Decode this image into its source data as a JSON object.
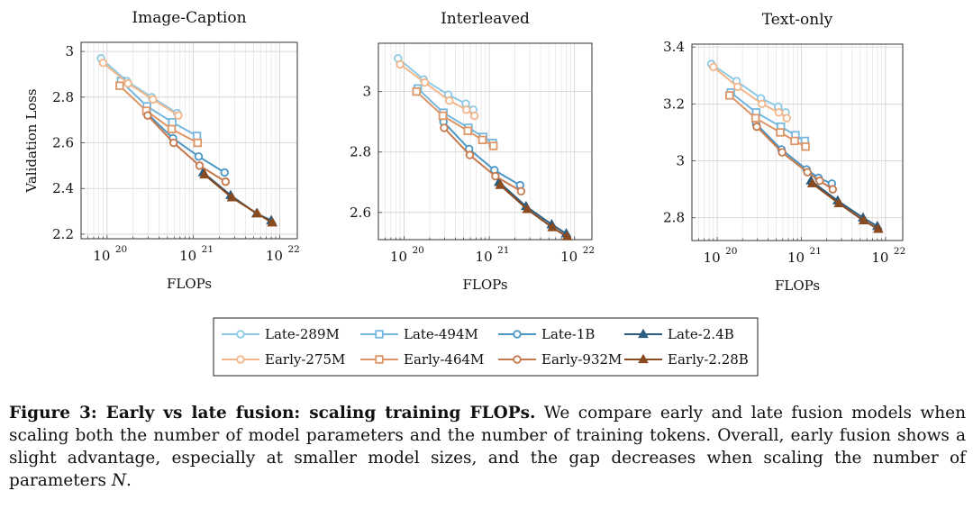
{
  "colors": {
    "late": [
      "#8ec9e6",
      "#74b7df",
      "#4d97c7",
      "#2a5d80"
    ],
    "early": [
      "#f2b68a",
      "#dd9566",
      "#c57a4d",
      "#8a4a1f"
    ]
  },
  "chart_data": [
    {
      "type": "line",
      "title": "Image-Caption",
      "xlabel": "FLOPs",
      "ylabel": "Validation Loss",
      "xscale": "log",
      "xlim": [
        5e+19,
        1.6e+22
      ],
      "ylim": [
        2.18,
        3.04
      ],
      "xticks": [
        {
          "v": 1e+20,
          "base": "10",
          "exp": "20"
        },
        {
          "v": 1e+21,
          "base": "10",
          "exp": "21"
        },
        {
          "v": 1e+22,
          "base": "10",
          "exp": "22"
        }
      ],
      "yticks": [
        {
          "v": 2.2,
          "label": "2.2"
        },
        {
          "v": 2.4,
          "label": "2.4"
        },
        {
          "v": 2.6,
          "label": "2.6"
        },
        {
          "v": 2.8,
          "label": "2.8"
        },
        {
          "v": 3.0,
          "label": "3"
        }
      ],
      "grid": true,
      "series": [
        {
          "name": "Late-289M",
          "group": "late",
          "marker": "circle",
          "points": [
            [
              8.5e+19,
              2.97
            ],
            [
              1.7e+20,
              2.87
            ],
            [
              3.3e+20,
              2.8
            ],
            [
              6.5e+20,
              2.73
            ]
          ]
        },
        {
          "name": "Late-494M",
          "group": "late",
          "marker": "square",
          "points": [
            [
              1.45e+20,
              2.87
            ],
            [
              2.9e+20,
              2.76
            ],
            [
              5.7e+20,
              2.69
            ],
            [
              1.1e+21,
              2.63
            ]
          ]
        },
        {
          "name": "Late-1B",
          "group": "late",
          "marker": "circle",
          "points": [
            [
              2.9e+20,
              2.73
            ],
            [
              5.8e+20,
              2.62
            ],
            [
              1.15e+21,
              2.54
            ],
            [
              2.3e+21,
              2.47
            ]
          ]
        },
        {
          "name": "Late-2.4B",
          "group": "late",
          "marker": "triangle",
          "points": [
            [
              1.3e+21,
              2.47
            ],
            [
              2.7e+21,
              2.37
            ],
            [
              5.4e+21,
              2.29
            ],
            [
              8e+21,
              2.26
            ]
          ]
        },
        {
          "name": "Early-275M",
          "group": "early",
          "marker": "circle",
          "points": [
            [
              9e+19,
              2.95
            ],
            [
              1.75e+20,
              2.86
            ],
            [
              3.4e+20,
              2.79
            ],
            [
              6.7e+20,
              2.72
            ]
          ]
        },
        {
          "name": "Early-464M",
          "group": "early",
          "marker": "square",
          "points": [
            [
              1.4e+20,
              2.85
            ],
            [
              2.85e+20,
              2.74
            ],
            [
              5.6e+20,
              2.66
            ],
            [
              1.12e+21,
              2.6
            ]
          ]
        },
        {
          "name": "Early-932M",
          "group": "early",
          "marker": "circle",
          "points": [
            [
              2.95e+20,
              2.72
            ],
            [
              5.9e+20,
              2.6
            ],
            [
              1.18e+21,
              2.5
            ],
            [
              2.36e+21,
              2.43
            ]
          ]
        },
        {
          "name": "Early-2.28B",
          "group": "early",
          "marker": "triangle",
          "points": [
            [
              1.35e+21,
              2.46
            ],
            [
              2.8e+21,
              2.36
            ],
            [
              5.5e+21,
              2.29
            ],
            [
              8.2e+21,
              2.25
            ]
          ]
        }
      ]
    },
    {
      "type": "line",
      "title": "Interleaved",
      "xlabel": "FLOPs",
      "ylabel": "",
      "xscale": "log",
      "xlim": [
        5e+19,
        1.6e+22
      ],
      "ylim": [
        2.51,
        3.16
      ],
      "xticks": [
        {
          "v": 1e+20,
          "base": "10",
          "exp": "20"
        },
        {
          "v": 1e+21,
          "base": "10",
          "exp": "21"
        },
        {
          "v": 1e+22,
          "base": "10",
          "exp": "22"
        }
      ],
      "yticks": [
        {
          "v": 2.6,
          "label": "2.6"
        },
        {
          "v": 2.8,
          "label": "2.8"
        },
        {
          "v": 3.0,
          "label": "3"
        }
      ],
      "grid": true,
      "series": [
        {
          "name": "Late-289M",
          "group": "late",
          "marker": "circle",
          "points": [
            [
              8.5e+19,
              3.11
            ],
            [
              1.7e+20,
              3.04
            ],
            [
              3.3e+20,
              2.99
            ],
            [
              5.3e+20,
              2.96
            ],
            [
              6.5e+20,
              2.94
            ]
          ]
        },
        {
          "name": "Late-494M",
          "group": "late",
          "marker": "square",
          "points": [
            [
              1.45e+20,
              3.01
            ],
            [
              2.9e+20,
              2.93
            ],
            [
              5.7e+20,
              2.88
            ],
            [
              8.5e+20,
              2.85
            ],
            [
              1.1e+21,
              2.83
            ]
          ]
        },
        {
          "name": "Late-1B",
          "group": "late",
          "marker": "circle",
          "points": [
            [
              2.9e+20,
              2.9
            ],
            [
              5.8e+20,
              2.81
            ],
            [
              1.15e+21,
              2.74
            ],
            [
              2.3e+21,
              2.69
            ]
          ]
        },
        {
          "name": "Late-2.4B",
          "group": "late",
          "marker": "triangle",
          "points": [
            [
              1.3e+21,
              2.7
            ],
            [
              2.7e+21,
              2.62
            ],
            [
              5.4e+21,
              2.56
            ],
            [
              8e+21,
              2.53
            ]
          ]
        },
        {
          "name": "Early-275M",
          "group": "early",
          "marker": "circle",
          "points": [
            [
              9e+19,
              3.09
            ],
            [
              1.75e+20,
              3.03
            ],
            [
              3.4e+20,
              2.97
            ],
            [
              5.4e+20,
              2.94
            ],
            [
              6.7e+20,
              2.92
            ]
          ]
        },
        {
          "name": "Early-464M",
          "group": "early",
          "marker": "square",
          "points": [
            [
              1.4e+20,
              3.0
            ],
            [
              2.85e+20,
              2.92
            ],
            [
              5.6e+20,
              2.87
            ],
            [
              8.3e+20,
              2.84
            ],
            [
              1.12e+21,
              2.82
            ]
          ]
        },
        {
          "name": "Early-932M",
          "group": "early",
          "marker": "circle",
          "points": [
            [
              2.95e+20,
              2.88
            ],
            [
              5.9e+20,
              2.79
            ],
            [
              1.18e+21,
              2.72
            ],
            [
              2.36e+21,
              2.67
            ]
          ]
        },
        {
          "name": "Early-2.28B",
          "group": "early",
          "marker": "triangle",
          "points": [
            [
              1.35e+21,
              2.69
            ],
            [
              2.8e+21,
              2.61
            ],
            [
              5.5e+21,
              2.55
            ],
            [
              8.2e+21,
              2.52
            ]
          ]
        }
      ]
    },
    {
      "type": "line",
      "title": "Text-only",
      "xlabel": "FLOPs",
      "ylabel": "",
      "xscale": "log",
      "xlim": [
        5e+19,
        1.6e+22
      ],
      "ylim": [
        2.72,
        3.41
      ],
      "xticks": [
        {
          "v": 1e+20,
          "base": "10",
          "exp": "20"
        },
        {
          "v": 1e+21,
          "base": "10",
          "exp": "21"
        },
        {
          "v": 1e+22,
          "base": "10",
          "exp": "22"
        }
      ],
      "yticks": [
        {
          "v": 2.8,
          "label": "2.8"
        },
        {
          "v": 3.0,
          "label": "3"
        },
        {
          "v": 3.2,
          "label": "3.2"
        },
        {
          "v": 3.4,
          "label": "3.4"
        }
      ],
      "grid": true,
      "series": [
        {
          "name": "Late-289M",
          "group": "late",
          "marker": "circle",
          "points": [
            [
              8.5e+19,
              3.34
            ],
            [
              1.7e+20,
              3.28
            ],
            [
              3.3e+20,
              3.22
            ],
            [
              5.3e+20,
              3.19
            ],
            [
              6.5e+20,
              3.17
            ]
          ]
        },
        {
          "name": "Late-494M",
          "group": "late",
          "marker": "square",
          "points": [
            [
              1.45e+20,
              3.24
            ],
            [
              2.9e+20,
              3.17
            ],
            [
              5.7e+20,
              3.12
            ],
            [
              8.5e+20,
              3.09
            ],
            [
              1.1e+21,
              3.07
            ]
          ]
        },
        {
          "name": "Late-1B",
          "group": "late",
          "marker": "circle",
          "points": [
            [
              2.9e+20,
              3.13
            ],
            [
              5.8e+20,
              3.04
            ],
            [
              1.15e+21,
              2.97
            ],
            [
              1.6e+21,
              2.94
            ],
            [
              2.3e+21,
              2.92
            ]
          ]
        },
        {
          "name": "Late-2.4B",
          "group": "late",
          "marker": "triangle",
          "points": [
            [
              1.3e+21,
              2.93
            ],
            [
              2.7e+21,
              2.86
            ],
            [
              5.4e+21,
              2.8
            ],
            [
              8e+21,
              2.77
            ]
          ]
        },
        {
          "name": "Early-275M",
          "group": "early",
          "marker": "circle",
          "points": [
            [
              9e+19,
              3.33
            ],
            [
              1.75e+20,
              3.26
            ],
            [
              3.4e+20,
              3.2
            ],
            [
              5.4e+20,
              3.17
            ],
            [
              6.7e+20,
              3.15
            ]
          ]
        },
        {
          "name": "Early-464M",
          "group": "early",
          "marker": "square",
          "points": [
            [
              1.4e+20,
              3.23
            ],
            [
              2.85e+20,
              3.15
            ],
            [
              5.6e+20,
              3.1
            ],
            [
              8.3e+20,
              3.07
            ],
            [
              1.12e+21,
              3.05
            ]
          ]
        },
        {
          "name": "Early-932M",
          "group": "early",
          "marker": "circle",
          "points": [
            [
              2.95e+20,
              3.12
            ],
            [
              5.9e+20,
              3.03
            ],
            [
              1.18e+21,
              2.96
            ],
            [
              1.65e+21,
              2.93
            ],
            [
              2.36e+21,
              2.9
            ]
          ]
        },
        {
          "name": "Early-2.28B",
          "group": "early",
          "marker": "triangle",
          "points": [
            [
              1.35e+21,
              2.92
            ],
            [
              2.8e+21,
              2.85
            ],
            [
              5.5e+21,
              2.79
            ],
            [
              8.2e+21,
              2.76
            ]
          ]
        }
      ]
    }
  ],
  "legend": [
    {
      "name": "Late-289M",
      "group": "late",
      "idx": 0,
      "marker": "circle"
    },
    {
      "name": "Late-494M",
      "group": "late",
      "idx": 1,
      "marker": "square"
    },
    {
      "name": "Late-1B",
      "group": "late",
      "idx": 2,
      "marker": "circle"
    },
    {
      "name": "Late-2.4B",
      "group": "late",
      "idx": 3,
      "marker": "triangle"
    },
    {
      "name": "Early-275M",
      "group": "early",
      "idx": 0,
      "marker": "circle"
    },
    {
      "name": "Early-464M",
      "group": "early",
      "idx": 1,
      "marker": "square"
    },
    {
      "name": "Early-932M",
      "group": "early",
      "idx": 2,
      "marker": "circle"
    },
    {
      "name": "Early-2.28B",
      "group": "early",
      "idx": 3,
      "marker": "triangle"
    }
  ],
  "caption": {
    "lead": "Figure 3: Early vs late fusion: scaling training FLOPs.",
    "body": " We compare early and late fusion models when scaling both the number of model parameters and the number of training tokens. Overall, early fusion shows a slight advantage, especially at smaller model sizes, and the gap decreases when scaling the number of parameters ",
    "var": "N",
    "end": "."
  }
}
